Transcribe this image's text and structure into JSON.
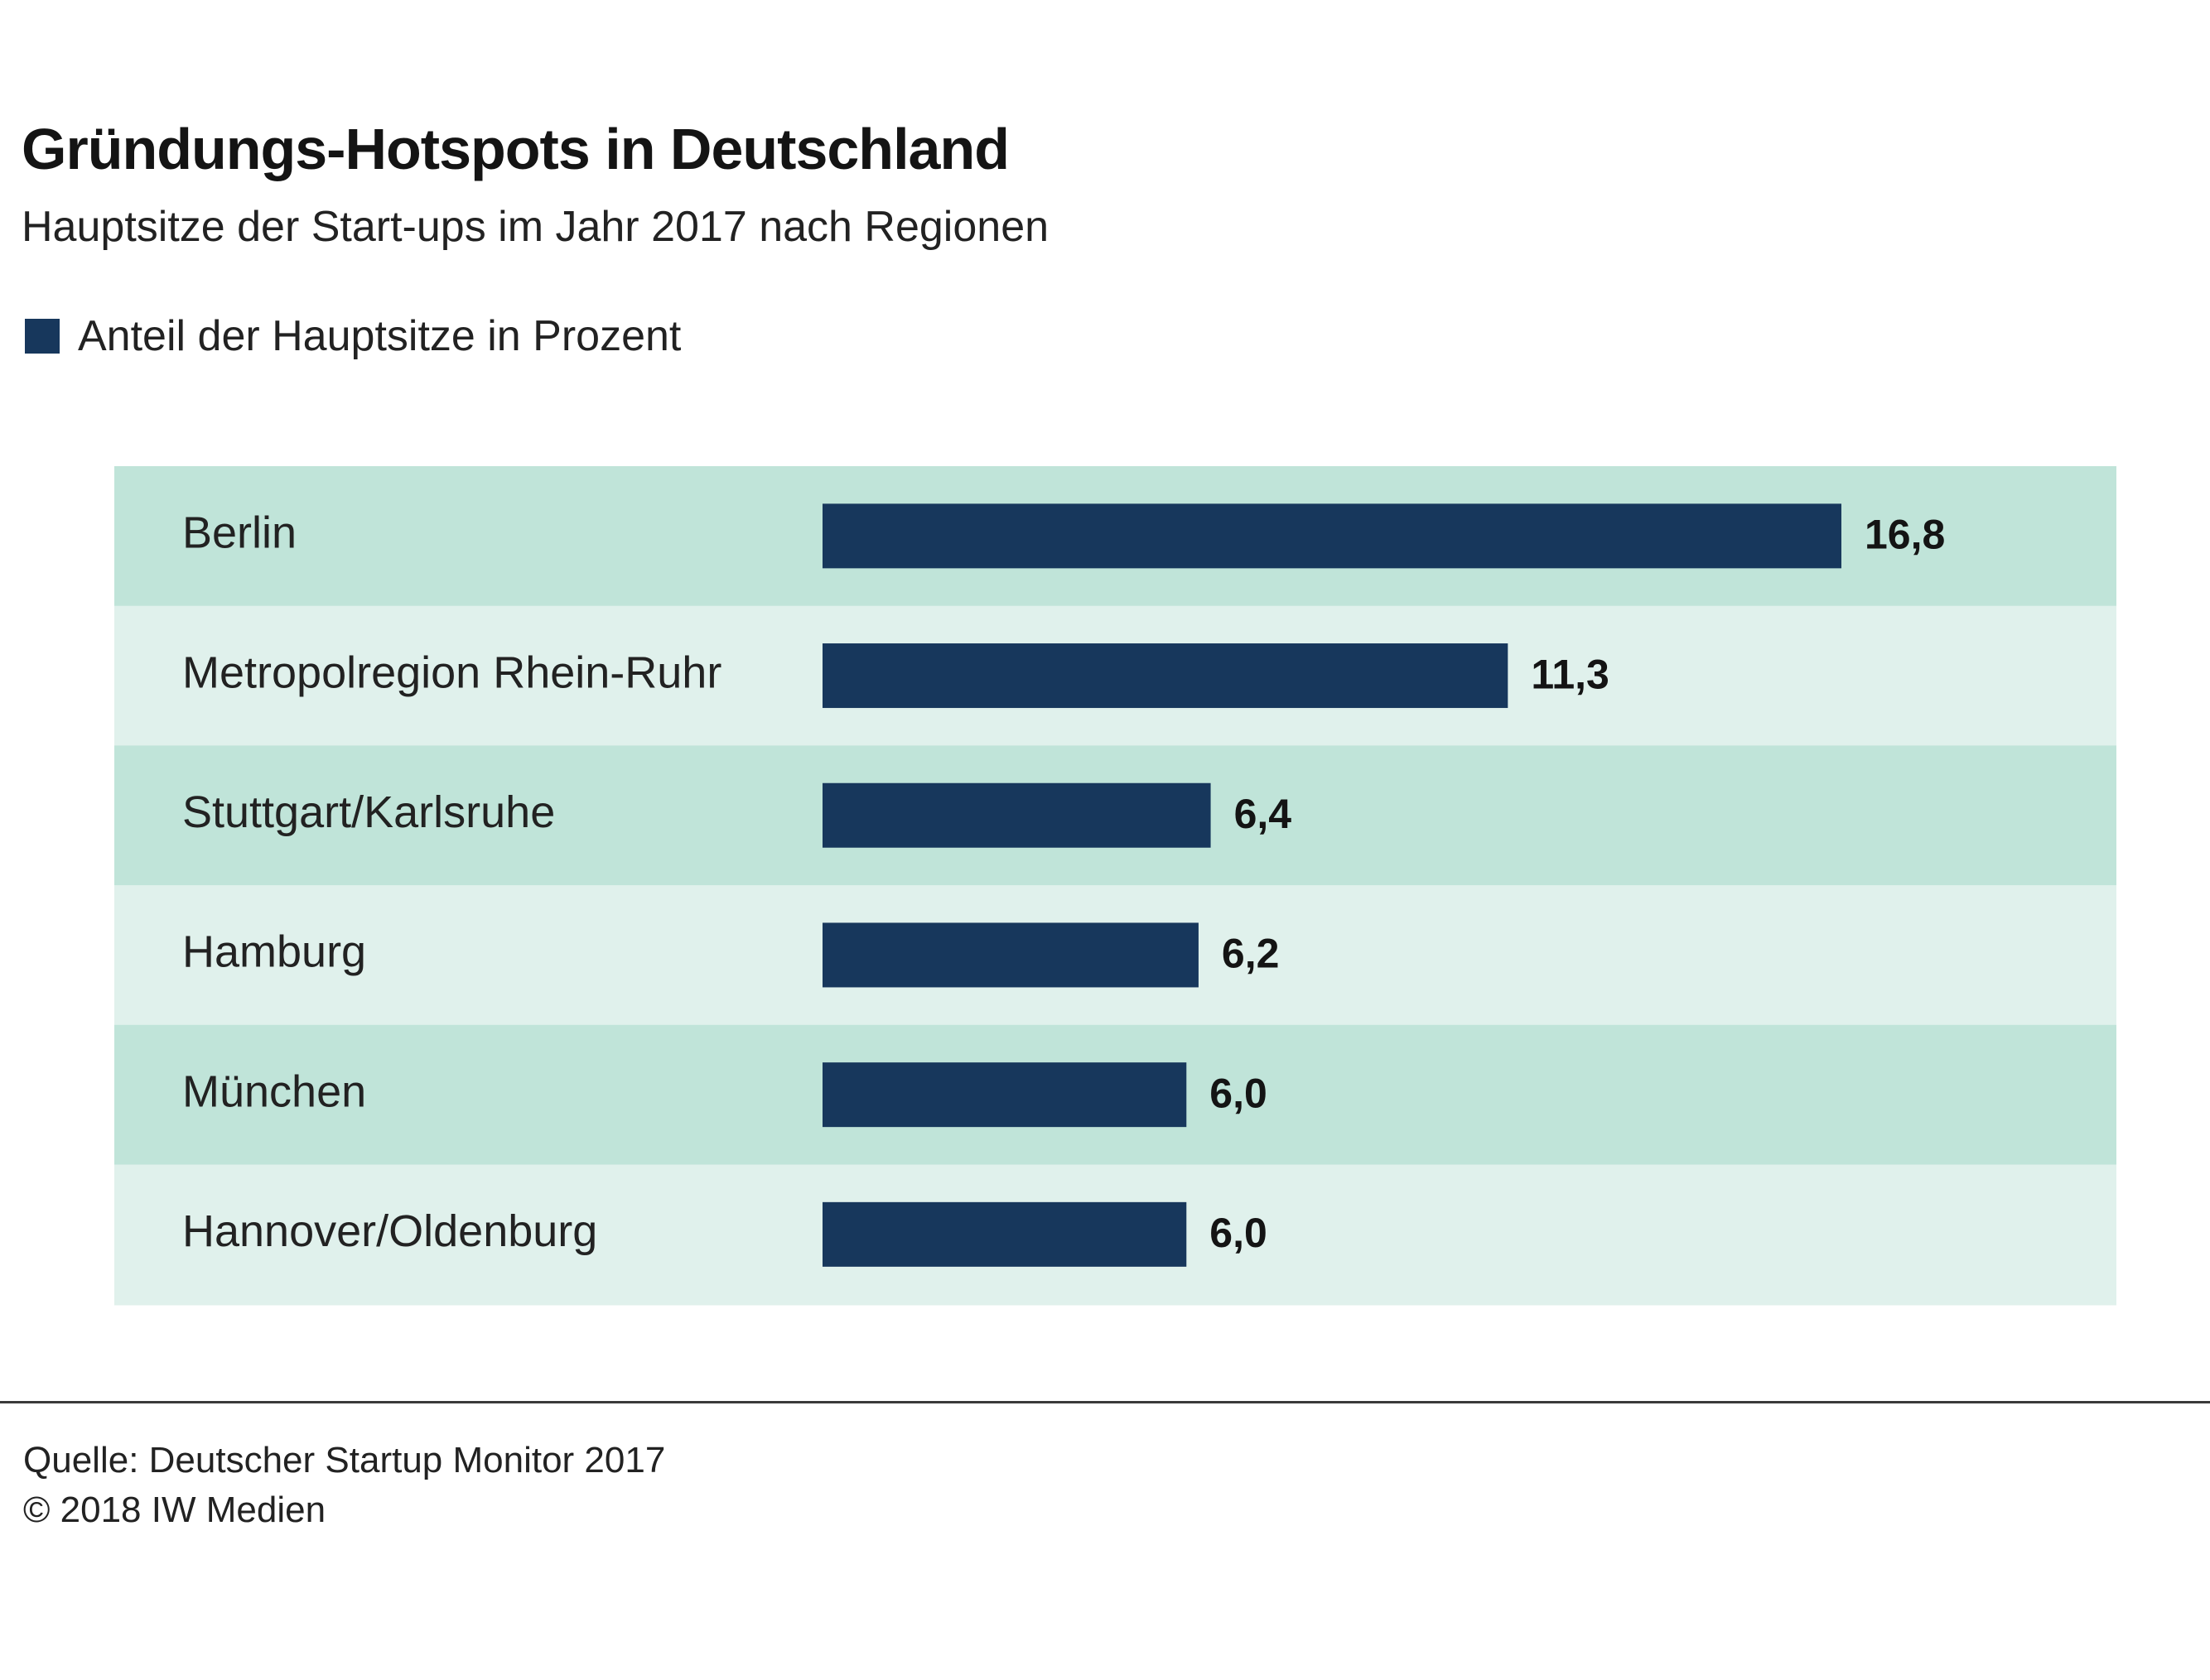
{
  "title": "Gründungs-Hotspots in Deutschland",
  "subtitle": "Hauptsitze der Start-ups im Jahr 2017 nach Regionen",
  "legend": {
    "label": "Anteil der Hauptsitze  in Prozent"
  },
  "colors": {
    "bar": "#17375c",
    "row_dark": "#c0e4d9",
    "row_light": "#e0f1ec",
    "label": "#222222",
    "value": "#141414"
  },
  "chart_data": {
    "type": "bar",
    "orientation": "horizontal",
    "title": "Gründungs-Hotspots in Deutschland",
    "subtitle": "Hauptsitze der Start-ups im Jahr 2017 nach Regionen",
    "categories": [
      "Berlin",
      "Metropolregion Rhein-Ruhr",
      "Stuttgart/Karlsruhe",
      "Hamburg",
      "München",
      "Hannover/Oldenburg"
    ],
    "series": [
      {
        "name": "Anteil der Hauptsitze  in Prozent",
        "values": [
          16.8,
          11.3,
          6.4,
          6.2,
          6.0,
          6.0
        ],
        "labels": [
          "16,8",
          "11,3",
          "6,4",
          "6,2",
          "6,0",
          "6,0"
        ]
      }
    ],
    "xlim": [
      0,
      16.8
    ],
    "grid": false,
    "legend": "top-left"
  },
  "footer": {
    "source": "Quelle: Deutscher Startup Monitor 2017",
    "copyright": "© 2018 IW Medien"
  }
}
